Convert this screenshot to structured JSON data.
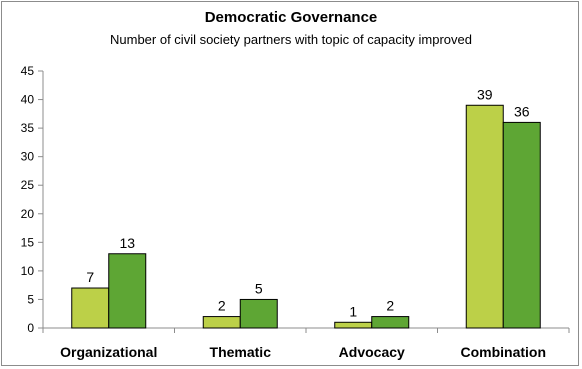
{
  "chart_data": {
    "type": "bar",
    "title": "Democratic Governance",
    "subtitle": "Number of civil society partners  with topic of capacity improved",
    "categories": [
      "Organizational",
      "Thematic",
      "Advocacy",
      "Combination"
    ],
    "series": [
      {
        "values": [
          7,
          2,
          1,
          39
        ],
        "color": "#bcd048"
      },
      {
        "values": [
          13,
          5,
          2,
          36
        ],
        "color": "#5ea634"
      }
    ],
    "ylim": [
      0,
      45
    ],
    "yticks": [
      "0",
      "5",
      "10",
      "15",
      "20",
      "25",
      "30",
      "35",
      "40",
      "45"
    ],
    "grid": false,
    "legend": "none"
  }
}
